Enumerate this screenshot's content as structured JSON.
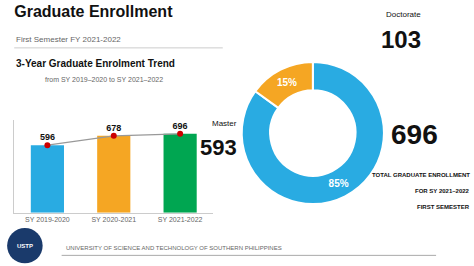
{
  "title": "Graduate Enrollment",
  "subtitle": "First Semester FY 2021-2022",
  "annotations": [
    "USTP",
    "UNIVERSITY OF SCIENCE AND TECHNOLOGY OF SOUTHERN PHILIPPINES"
  ],
  "chart_data": [
    {
      "type": "bar",
      "title": "3-Year Graduate Enrolment Trend",
      "subtitle": "from SY 2019–2020 to SY 2021–2022",
      "categories": [
        "SY 2019-2020",
        "SY 2020-2021",
        "SY 2021-2022"
      ],
      "series": [
        {
          "type": "bar",
          "values": [
            596,
            678,
            696
          ],
          "colors": [
            "#29ABE2",
            "#F5A623",
            "#00A651"
          ]
        },
        {
          "type": "line",
          "values": [
            596,
            678,
            696
          ],
          "color": "#999999",
          "line_style": "solid"
        },
        {
          "type": "scatter",
          "values": [
            596,
            678,
            696
          ],
          "color": "#CC0000",
          "marker": "circle"
        }
      ],
      "ylim": [
        0,
        820
      ],
      "tick_labels": "x",
      "grid": false,
      "data_labels": true
    },
    {
      "type": "pie",
      "categories": [
        "Master",
        "Doctorate"
      ],
      "values": [
        85,
        15
      ],
      "value_labels": [
        "85%",
        "15%"
      ],
      "colors": [
        "#29ABE2",
        "#F5A623"
      ],
      "counts": [
        593,
        103
      ],
      "total": 696,
      "annotations": [
        "TOTAL GRADUATE ENROLLMENT",
        "FOR SY 2021–2022",
        "FIRST SEMESTER"
      ],
      "data_labels": true
    }
  ]
}
